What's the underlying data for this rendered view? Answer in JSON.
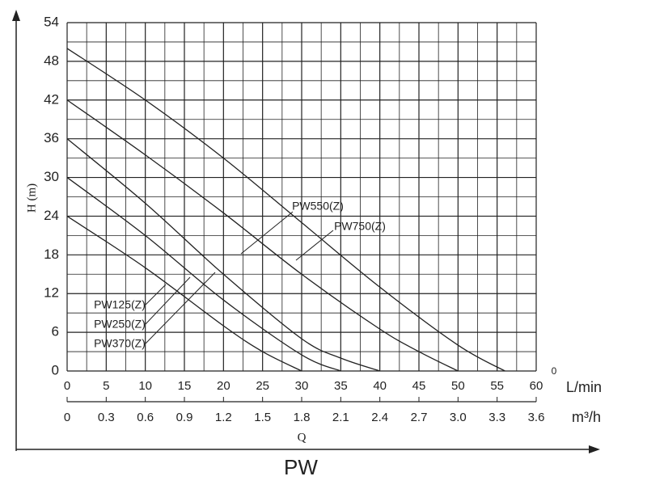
{
  "chart_data": {
    "type": "line",
    "title": "PW",
    "y_label": "H (m)",
    "x_label": "Q",
    "x_unit": "L/min",
    "x2_unit": "m³/h",
    "x_end_label": "0",
    "xlim": [
      0,
      60
    ],
    "xticks": [
      0,
      5,
      10,
      15,
      20,
      25,
      30,
      35,
      40,
      45,
      50,
      55,
      60
    ],
    "x2lim": [
      0,
      3.6
    ],
    "x2ticks": [
      0,
      0.3,
      0.6,
      0.9,
      1.2,
      1.5,
      1.8,
      2.1,
      2.4,
      2.7,
      {
        "value": 3,
        "label": "3.0"
      },
      3.3,
      3.6
    ],
    "ylim": [
      0,
      54
    ],
    "yticks": [
      0,
      6,
      12,
      18,
      24,
      30,
      36,
      42,
      48,
      54
    ],
    "grid": true,
    "series": [
      {
        "name": "PW125(Z)",
        "color": "#222222",
        "x": [
          0,
          10,
          20,
          25,
          30
        ],
        "values": [
          24,
          16,
          7,
          3,
          0
        ]
      },
      {
        "name": "PW250(Z)",
        "color": "#222222",
        "x": [
          0,
          10,
          20,
          30,
          35
        ],
        "values": [
          30,
          21,
          11,
          2.5,
          0
        ]
      },
      {
        "name": "PW370(Z)",
        "color": "#222222",
        "x": [
          0,
          10,
          20,
          30,
          35,
          40
        ],
        "values": [
          36,
          26,
          15,
          5,
          2,
          0
        ]
      },
      {
        "name": "PW550(Z)",
        "color": "#222222",
        "x": [
          0,
          10,
          20,
          30,
          40,
          45,
          50
        ],
        "values": [
          42,
          33.5,
          24.5,
          15,
          6.5,
          3,
          0
        ]
      },
      {
        "name": "PW750(Z)",
        "color": "#222222",
        "x": [
          0,
          10,
          20,
          30,
          40,
          50,
          56
        ],
        "values": [
          50,
          42,
          33,
          23,
          13,
          4,
          0
        ]
      }
    ]
  }
}
